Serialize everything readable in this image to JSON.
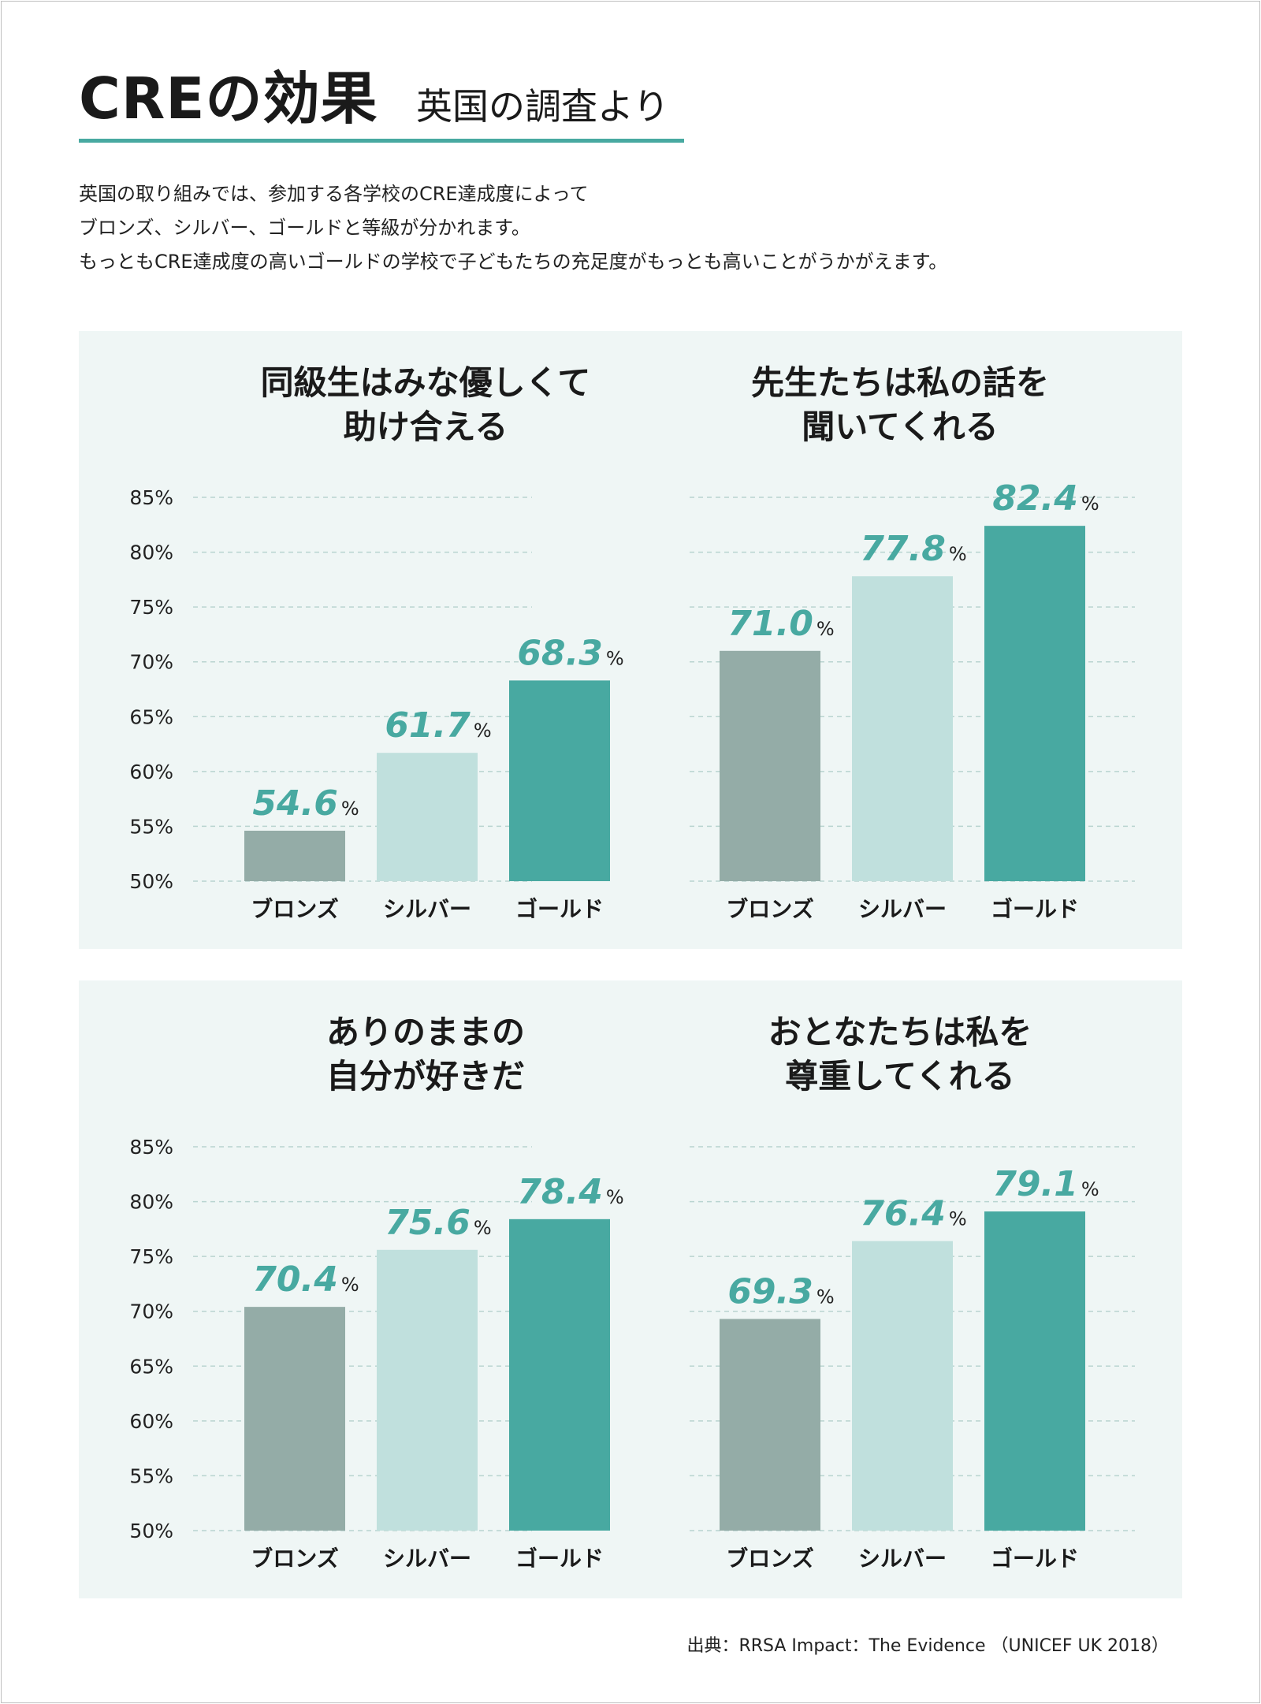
{
  "header": {
    "title": "CREの効果",
    "subtitle": "英国の調査より"
  },
  "description": [
    "英国の取り組みでは、参加する各学校のCRE達成度によって",
    "ブロンズ、シルバー、ゴールドと等級が分かれます。",
    "もっともCRE達成度の高いゴールドの学校で子どもたちの充足度がもっとも高いことがうかがえます。"
  ],
  "colors": {
    "bronze": "#94aca7",
    "silver": "#c0e0dd",
    "gold": "#48a9a1",
    "accent_text": "#48a9a1",
    "panel_bg": "#eff6f5"
  },
  "unit": "%",
  "chart_data": [
    {
      "type": "bar",
      "title": [
        "同級生はみな優しくて",
        "助け合える"
      ],
      "categories": [
        "ブロンズ",
        "シルバー",
        "ゴールド"
      ],
      "values": [
        54.6,
        61.7,
        68.3
      ],
      "labels": [
        "54.6",
        "61.7",
        "68.3"
      ],
      "ylim": [
        50,
        85
      ],
      "yticks": [
        50,
        55,
        60,
        65,
        70,
        75,
        80,
        85
      ],
      "ytick_labels": [
        "50%",
        "55%",
        "60%",
        "65%",
        "70%",
        "75%",
        "80%",
        "85%"
      ],
      "grid": true
    },
    {
      "type": "bar",
      "title": [
        "先生たちは私の話を",
        "聞いてくれる"
      ],
      "categories": [
        "ブロンズ",
        "シルバー",
        "ゴールド"
      ],
      "values": [
        71.0,
        77.8,
        82.4
      ],
      "labels": [
        "71.0",
        "77.8",
        "82.4"
      ],
      "ylim": [
        50,
        85
      ],
      "yticks": [
        50,
        55,
        60,
        65,
        70,
        75,
        80,
        85
      ],
      "ytick_labels": [
        "50%",
        "55%",
        "60%",
        "65%",
        "70%",
        "75%",
        "80%",
        "85%"
      ],
      "grid": true
    },
    {
      "type": "bar",
      "title": [
        "ありのままの",
        "自分が好きだ"
      ],
      "categories": [
        "ブロンズ",
        "シルバー",
        "ゴールド"
      ],
      "values": [
        70.4,
        75.6,
        78.4
      ],
      "labels": [
        "70.4",
        "75.6",
        "78.4"
      ],
      "ylim": [
        50,
        85
      ],
      "yticks": [
        50,
        55,
        60,
        65,
        70,
        75,
        80,
        85
      ],
      "ytick_labels": [
        "50%",
        "55%",
        "60%",
        "65%",
        "70%",
        "75%",
        "80%",
        "85%"
      ],
      "grid": true
    },
    {
      "type": "bar",
      "title": [
        "おとなたちは私を",
        "尊重してくれる"
      ],
      "categories": [
        "ブロンズ",
        "シルバー",
        "ゴールド"
      ],
      "values": [
        69.3,
        76.4,
        79.1
      ],
      "labels": [
        "69.3",
        "76.4",
        "79.1"
      ],
      "ylim": [
        50,
        85
      ],
      "yticks": [
        50,
        55,
        60,
        65,
        70,
        75,
        80,
        85
      ],
      "ytick_labels": [
        "50%",
        "55%",
        "60%",
        "65%",
        "70%",
        "75%",
        "80%",
        "85%"
      ],
      "grid": true
    }
  ],
  "source": "出典：RRSA Impact：The Evidence （UNICEF UK 2018）"
}
